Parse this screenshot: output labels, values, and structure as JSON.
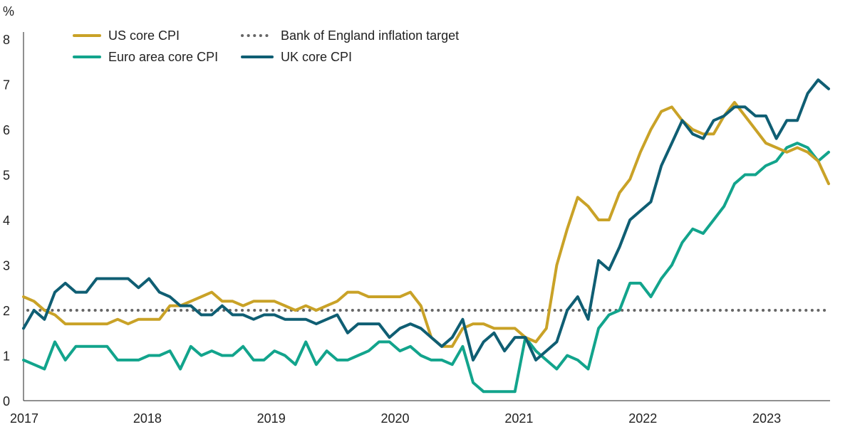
{
  "chart_data": {
    "type": "line",
    "y_unit": "%",
    "ylim": [
      0,
      8
    ],
    "y_ticks": [
      "0",
      "1",
      "2",
      "3",
      "4",
      "5",
      "6",
      "7",
      "8"
    ],
    "x_ticks": [
      "2017",
      "2018",
      "2019",
      "2020",
      "2021",
      "2022",
      "2023"
    ],
    "x_start": "2017-01",
    "x_end": "2023-07",
    "grid": false,
    "legend_position": "top-left",
    "series": [
      {
        "name": "US core CPI",
        "color": "#C9A227",
        "style": "solid",
        "values": [
          2.3,
          2.2,
          2.0,
          1.9,
          1.7,
          1.7,
          1.7,
          1.7,
          1.7,
          1.8,
          1.7,
          1.8,
          1.8,
          1.8,
          2.1,
          2.1,
          2.2,
          2.3,
          2.4,
          2.2,
          2.2,
          2.1,
          2.2,
          2.2,
          2.2,
          2.1,
          2.0,
          2.1,
          2.0,
          2.1,
          2.2,
          2.4,
          2.4,
          2.3,
          2.3,
          2.3,
          2.3,
          2.4,
          2.1,
          1.4,
          1.2,
          1.2,
          1.6,
          1.7,
          1.7,
          1.6,
          1.6,
          1.6,
          1.4,
          1.3,
          1.6,
          3.0,
          3.8,
          4.5,
          4.3,
          4.0,
          4.0,
          4.6,
          4.9,
          5.5,
          6.0,
          6.4,
          6.5,
          6.2,
          6.0,
          5.9,
          5.9,
          6.3,
          6.6,
          6.3,
          6.0,
          5.7,
          5.6,
          5.5,
          5.6,
          5.5,
          5.3,
          4.8
        ]
      },
      {
        "name": "Euro area core CPI",
        "color": "#12A48C",
        "style": "solid",
        "values": [
          0.9,
          0.8,
          0.7,
          1.3,
          0.9,
          1.2,
          1.2,
          1.2,
          1.2,
          0.9,
          0.9,
          0.9,
          1.0,
          1.0,
          1.1,
          0.7,
          1.2,
          1.0,
          1.1,
          1.0,
          1.0,
          1.2,
          0.9,
          0.9,
          1.1,
          1.0,
          0.8,
          1.3,
          0.8,
          1.1,
          0.9,
          0.9,
          1.0,
          1.1,
          1.3,
          1.3,
          1.1,
          1.2,
          1.0,
          0.9,
          0.9,
          0.8,
          1.2,
          0.4,
          0.2,
          0.2,
          0.2,
          0.2,
          1.4,
          1.1,
          0.9,
          0.7,
          1.0,
          0.9,
          0.7,
          1.6,
          1.9,
          2.0,
          2.6,
          2.6,
          2.3,
          2.7,
          3.0,
          3.5,
          3.8,
          3.7,
          4.0,
          4.3,
          4.8,
          5.0,
          5.0,
          5.2,
          5.3,
          5.6,
          5.7,
          5.6,
          5.3,
          5.5
        ]
      },
      {
        "name": "UK core CPI",
        "color": "#0F5E73",
        "style": "solid",
        "values": [
          1.6,
          2.0,
          1.8,
          2.4,
          2.6,
          2.4,
          2.4,
          2.7,
          2.7,
          2.7,
          2.7,
          2.5,
          2.7,
          2.4,
          2.3,
          2.1,
          2.1,
          1.9,
          1.9,
          2.1,
          1.9,
          1.9,
          1.8,
          1.9,
          1.9,
          1.8,
          1.8,
          1.8,
          1.7,
          1.8,
          1.9,
          1.5,
          1.7,
          1.7,
          1.7,
          1.4,
          1.6,
          1.7,
          1.6,
          1.4,
          1.2,
          1.4,
          1.8,
          0.9,
          1.3,
          1.5,
          1.1,
          1.4,
          1.4,
          0.9,
          1.1,
          1.3,
          2.0,
          2.3,
          1.8,
          3.1,
          2.9,
          3.4,
          4.0,
          4.2,
          4.4,
          5.2,
          5.7,
          6.2,
          5.9,
          5.8,
          6.2,
          6.3,
          6.5,
          6.5,
          6.3,
          6.3,
          5.8,
          6.2,
          6.2,
          6.8,
          7.1,
          6.9
        ]
      },
      {
        "name": "Bank of England inflation target",
        "color": "#666666",
        "style": "dotted",
        "values": [
          2,
          2
        ]
      }
    ]
  }
}
